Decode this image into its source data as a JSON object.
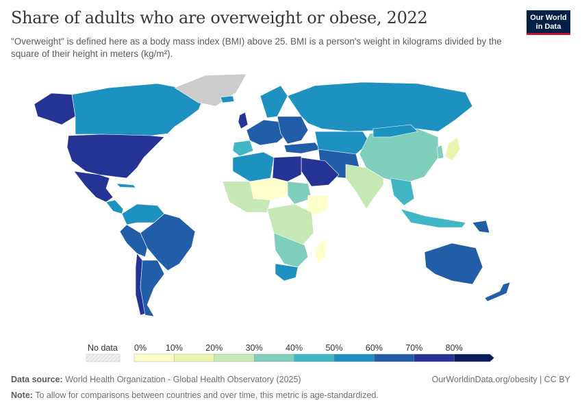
{
  "header": {
    "title": "Share of adults who are overweight or obese, 2022",
    "subtitle": "\"Overweight\" is defined here as a body mass index (BMI) above 25. BMI is a person's weight in kilograms divided by the square of their height in meters (kg/m²)."
  },
  "logo": {
    "line1": "Our World",
    "line2": "in Data"
  },
  "legend": {
    "no_data_label": "No data",
    "ticks": [
      "0%",
      "10%",
      "20%",
      "30%",
      "40%",
      "50%",
      "60%",
      "70%",
      "80%"
    ],
    "colors": [
      "#ffffcc",
      "#eaf6b0",
      "#c6e8b4",
      "#7fcdbb",
      "#41b6c4",
      "#1d91c0",
      "#225ea8",
      "#253494",
      "#081d58"
    ]
  },
  "chart_data": {
    "type": "choropleth",
    "title": "Share of adults who are overweight or obese, 2022",
    "unit": "%",
    "bins": [
      0,
      10,
      20,
      30,
      40,
      50,
      60,
      70,
      80
    ],
    "regions": [
      {
        "name": "United States",
        "value": 75
      },
      {
        "name": "Canada",
        "value": 63
      },
      {
        "name": "Mexico",
        "value": 72
      },
      {
        "name": "Brazil",
        "value": 64
      },
      {
        "name": "Argentina",
        "value": 68
      },
      {
        "name": "Chile",
        "value": 74
      },
      {
        "name": "Russia",
        "value": 62
      },
      {
        "name": "China",
        "value": 42
      },
      {
        "name": "India",
        "value": 28
      },
      {
        "name": "Australia",
        "value": 67
      },
      {
        "name": "Egypt",
        "value": 78
      },
      {
        "name": "Saudi Arabia",
        "value": 73
      },
      {
        "name": "Ethiopia",
        "value": 12
      },
      {
        "name": "Nigeria",
        "value": 33
      },
      {
        "name": "South Africa",
        "value": 55
      },
      {
        "name": "Japan",
        "value": 28
      }
    ]
  },
  "footer": {
    "source_label": "Data source:",
    "source_text": "World Health Organization - Global Health Observatory (2025)",
    "credit": "OurWorldinData.org/obesity | CC BY",
    "note_label": "Note:",
    "note_text": "To allow for comparisons between countries and over time, this metric is age-standardized."
  }
}
